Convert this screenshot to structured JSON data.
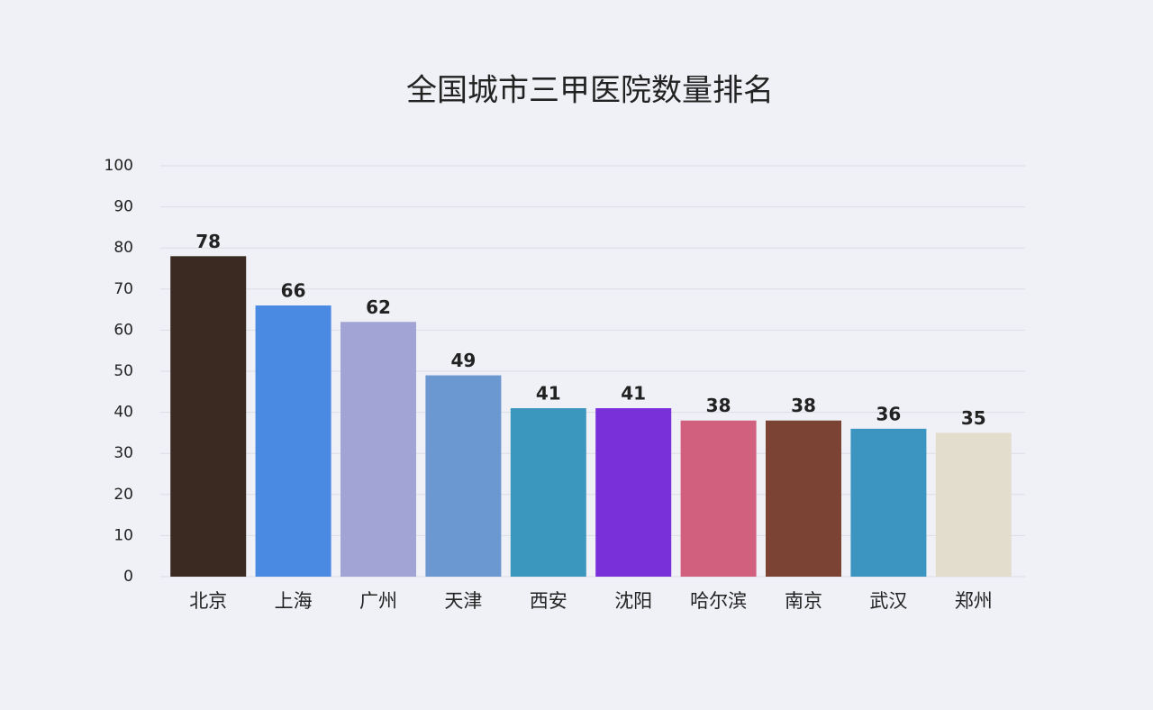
{
  "chart_data": {
    "type": "bar",
    "title": "全国城市三甲医院数量排名",
    "categories": [
      "北京",
      "上海",
      "广州",
      "天津",
      "西安",
      "沈阳",
      "哈尔滨",
      "南京",
      "武汉",
      "郑州"
    ],
    "values": [
      78,
      66,
      62,
      49,
      41,
      41,
      38,
      38,
      36,
      35
    ],
    "colors": [
      "#3b2a21",
      "#4a8ae2",
      "#a1a4d4",
      "#6b98d1",
      "#3b97bd",
      "#7a30d9",
      "#d1607f",
      "#7b4333",
      "#3b95c0",
      "#e3ddcd"
    ],
    "ylim": [
      0,
      100
    ],
    "yticks": [
      0,
      10,
      20,
      30,
      40,
      50,
      60,
      70,
      80,
      90,
      100
    ],
    "grid": true
  }
}
